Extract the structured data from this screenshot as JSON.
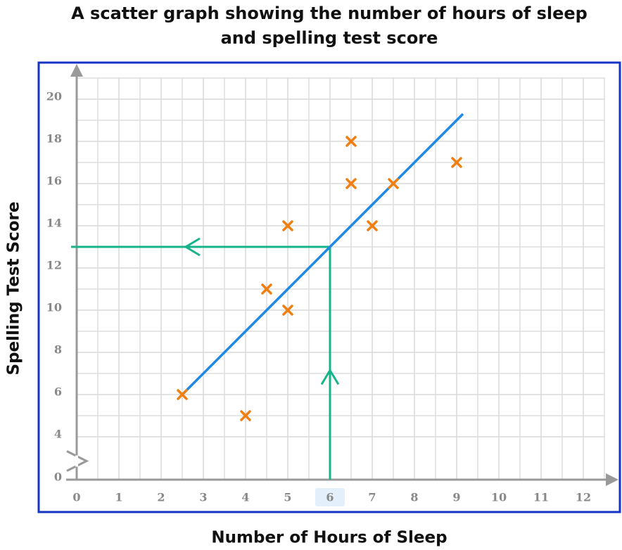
{
  "chart_data": {
    "type": "scatter",
    "title": [
      "A scatter graph showing the number of hours of sleep",
      "and spelling test score"
    ],
    "x_label": "Number of Hours of Sleep",
    "y_label": "Spelling Test Score",
    "x": [
      2.5,
      4,
      4.5,
      5,
      5,
      6.5,
      6.5,
      7,
      7.5,
      9
    ],
    "y": [
      6,
      5,
      11,
      10,
      14,
      18,
      16,
      14,
      16,
      17
    ],
    "color": "#f07f12",
    "xlim": [
      0,
      12.5
    ],
    "ylim": [
      0,
      21
    ],
    "axis_break": [
      0,
      4
    ],
    "xticks": [
      0,
      1,
      2,
      3,
      4,
      5,
      6,
      7,
      8,
      9,
      10,
      11,
      12
    ],
    "yticks": [
      0,
      4,
      6,
      8,
      10,
      12,
      14,
      16,
      18,
      20
    ],
    "minor_grid": {
      "x": 0.5,
      "y": 1
    },
    "grid": true,
    "trend_line": {
      "x": [
        2.5,
        9.15
      ],
      "y": [
        6,
        19.3
      ],
      "color": "#1e88e5"
    },
    "reading": {
      "x": 6,
      "y": 13,
      "color": "#17b38a"
    }
  }
}
